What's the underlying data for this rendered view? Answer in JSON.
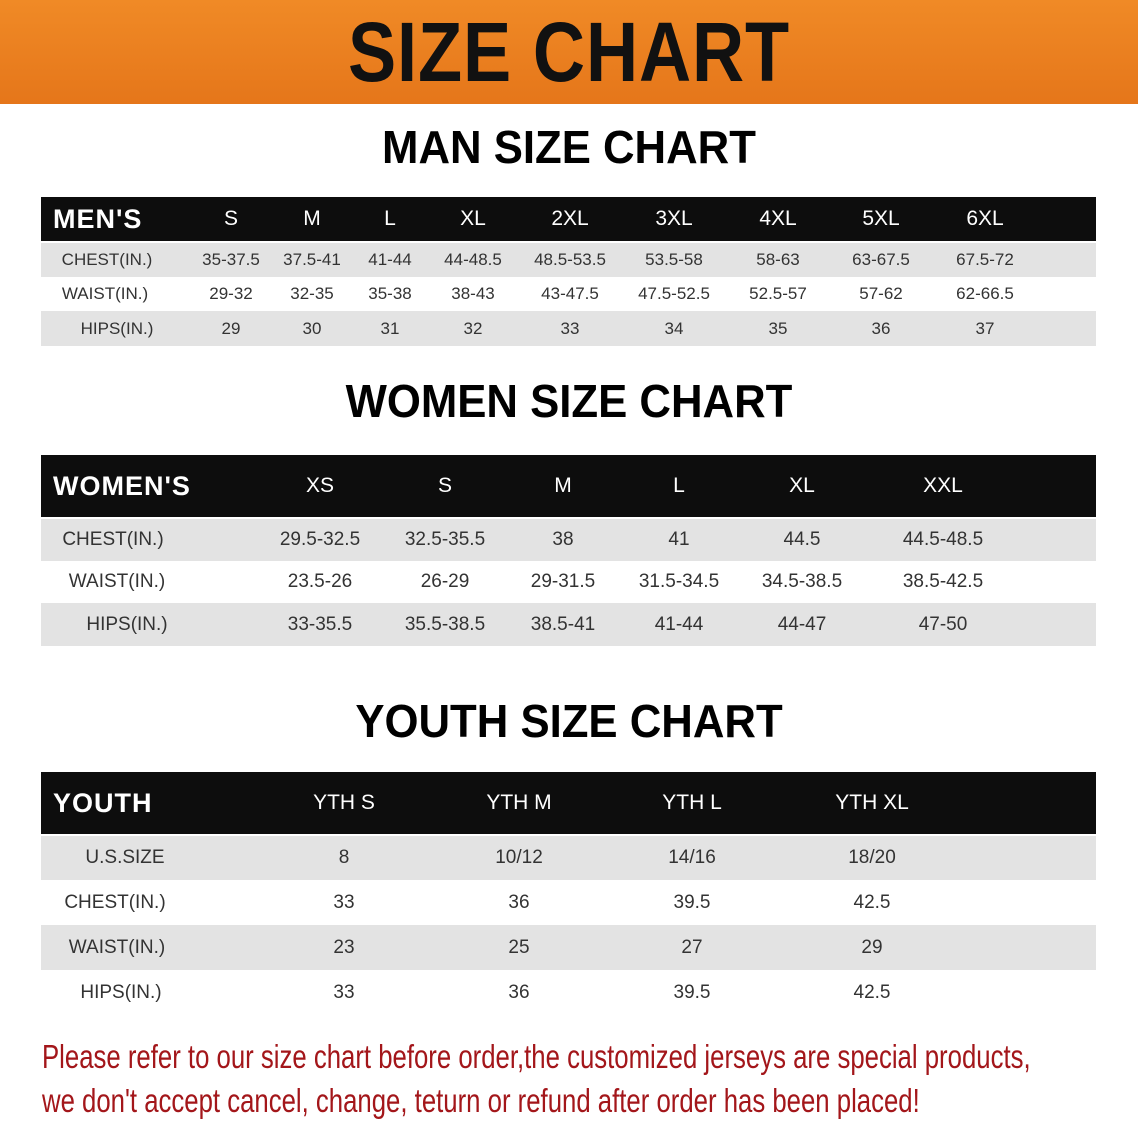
{
  "banner": {
    "title": "SIZE CHART",
    "color": "#e87d1f"
  },
  "men": {
    "title": "MAN SIZE CHART",
    "header": [
      "MEN'S",
      "S",
      "M",
      "L",
      "XL",
      "2XL",
      "3XL",
      "4XL",
      "5XL",
      "6XL"
    ],
    "rows": [
      [
        "CHEST(IN.)",
        "35-37.5",
        "37.5-41",
        "41-44",
        "44-48.5",
        "48.5-53.5",
        "53.5-58",
        "58-63",
        "63-67.5",
        "67.5-72"
      ],
      [
        "WAIST(IN.)",
        "29-32",
        "32-35",
        "35-38",
        "38-43",
        "43-47.5",
        "47.5-52.5",
        "52.5-57",
        "57-62",
        "62-66.5"
      ],
      [
        "HIPS(IN.)",
        "29",
        "30",
        "31",
        "32",
        "33",
        "34",
        "35",
        "36",
        "37"
      ]
    ]
  },
  "women": {
    "title": "WOMEN SIZE CHART",
    "header": [
      "WOMEN'S",
      "XS",
      "S",
      "M",
      "L",
      "XL",
      "XXL"
    ],
    "rows": [
      [
        "CHEST(IN.)",
        "29.5-32.5",
        "32.5-35.5",
        "38",
        "41",
        "44.5",
        "44.5-48.5"
      ],
      [
        "WAIST(IN.)",
        "23.5-26",
        "26-29",
        "29-31.5",
        "31.5-34.5",
        "34.5-38.5",
        "38.5-42.5"
      ],
      [
        "HIPS(IN.)",
        "33-35.5",
        "35.5-38.5",
        "38.5-41",
        "41-44",
        "44-47",
        "47-50"
      ]
    ]
  },
  "youth": {
    "title": "YOUTH SIZE CHART",
    "header": [
      "YOUTH",
      "YTH S",
      "YTH M",
      "YTH L",
      "YTH XL"
    ],
    "rows": [
      [
        "U.S.SIZE",
        "8",
        "10/12",
        "14/16",
        "18/20"
      ],
      [
        "CHEST(IN.)",
        "33",
        "36",
        "39.5",
        "42.5"
      ],
      [
        "WAIST(IN.)",
        "23",
        "25",
        "27",
        "29"
      ],
      [
        "HIPS(IN.)",
        "33",
        "36",
        "39.5",
        "42.5"
      ]
    ]
  },
  "note": {
    "line1": "Please refer to our size chart before order,the customized jerseys are special products,",
    "line2": "we don't accept cancel, change, teturn or refund after order has been placed!",
    "color": "#a3161a"
  }
}
